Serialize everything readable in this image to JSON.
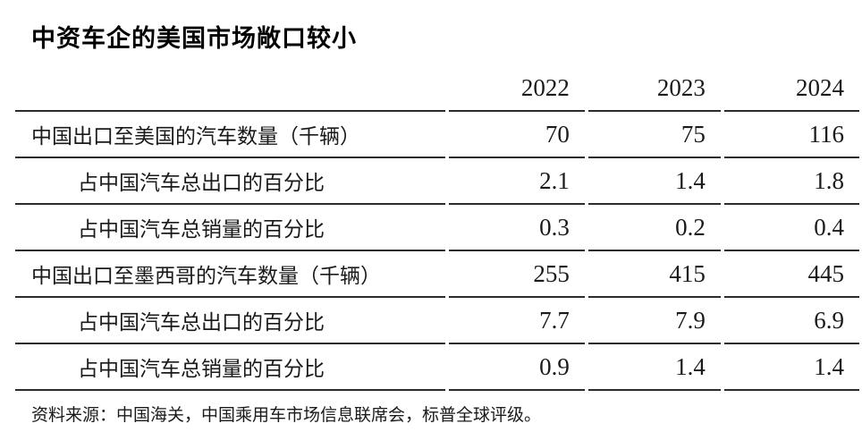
{
  "title": "中资车企的美国市场敞口较小",
  "table": {
    "year_columns": [
      "2022",
      "2023",
      "2024"
    ],
    "rows": [
      {
        "label": "中国出口至美国的汽车数量（千辆）",
        "indent": false,
        "values": [
          "70",
          "75",
          "116"
        ]
      },
      {
        "label": "占中国汽车总出口的百分比",
        "indent": true,
        "values": [
          "2.1",
          "1.4",
          "1.8"
        ]
      },
      {
        "label": "占中国汽车总销量的百分比",
        "indent": true,
        "values": [
          "0.3",
          "0.2",
          "0.4"
        ]
      },
      {
        "label": "中国出口至墨西哥的汽车数量（千辆）",
        "indent": false,
        "values": [
          "255",
          "415",
          "445"
        ]
      },
      {
        "label": "占中国汽车总出口的百分比",
        "indent": true,
        "values": [
          "7.7",
          "7.9",
          "6.9"
        ]
      },
      {
        "label": "占中国汽车总销量的百分比",
        "indent": true,
        "values": [
          "0.9",
          "1.4",
          "1.4"
        ]
      }
    ]
  },
  "source": "资料来源：中国海关，中国乘用车市场信息联席会，标普全球评级。",
  "colors": {
    "background": "#ffffff",
    "text": "#1a1a1a",
    "title": "#000000",
    "rule": "#2b2b2b"
  },
  "chart_data": {
    "type": "table",
    "title": "中资车企的美国市场敞口较小",
    "columns": [
      "",
      "2022",
      "2023",
      "2024"
    ],
    "rows": [
      [
        "中国出口至美国的汽车数量（千辆）",
        70,
        75,
        116
      ],
      [
        "占中国汽车总出口的百分比",
        2.1,
        1.4,
        1.8
      ],
      [
        "占中国汽车总销量的百分比",
        0.3,
        0.2,
        0.4
      ],
      [
        "中国出口至墨西哥的汽车数量（千辆）",
        255,
        415,
        445
      ],
      [
        "占中国汽车总出口的百分比",
        7.7,
        7.9,
        6.9
      ],
      [
        "占中国汽车总销量的百分比",
        0.9,
        1.4,
        1.4
      ]
    ],
    "source": "资料来源：中国海关，中国乘用车市场信息联席会，标普全球评级。"
  }
}
